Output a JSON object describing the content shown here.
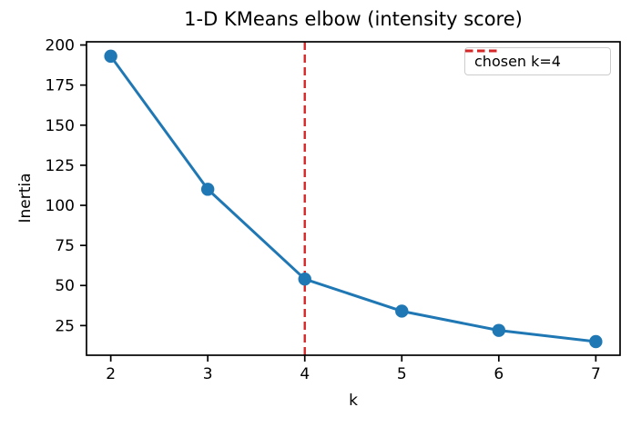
{
  "chart_data": {
    "type": "line",
    "title": "1-D KMeans elbow (intensity score)",
    "xlabel": "k",
    "ylabel": "Inertia",
    "x": [
      2,
      3,
      4,
      5,
      6,
      7
    ],
    "series": [
      {
        "name": "inertia",
        "color": "#1f77b4",
        "marker": "o",
        "values": [
          193,
          110,
          54,
          34,
          22,
          15
        ]
      }
    ],
    "xticks": [
      2,
      3,
      4,
      5,
      6,
      7
    ],
    "yticks": [
      25,
      50,
      75,
      100,
      125,
      150,
      175,
      200
    ],
    "xlim": [
      1.75,
      7.25
    ],
    "ylim": [
      6.5,
      202
    ],
    "grid": false,
    "vline": {
      "x": 4,
      "color": "#d62728",
      "linestyle": "dashed"
    },
    "legend": {
      "position": "upper right",
      "entries": [
        {
          "label": "chosen k=4",
          "color": "#d62728",
          "linestyle": "dashed"
        }
      ]
    }
  }
}
